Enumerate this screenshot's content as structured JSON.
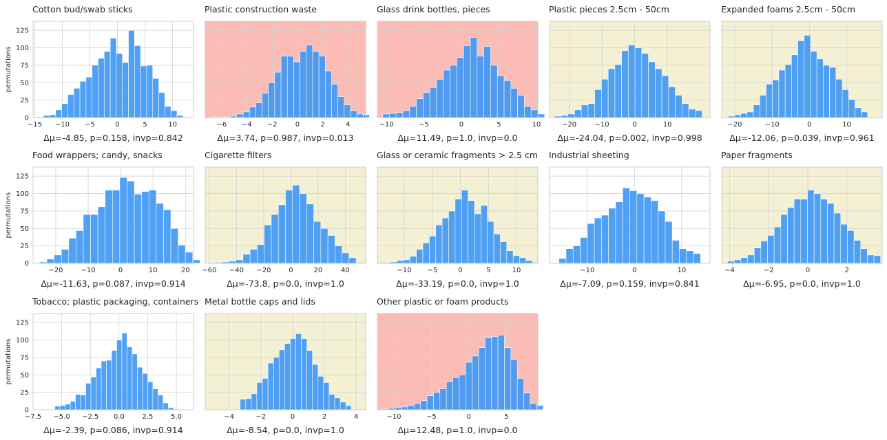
{
  "figure": {
    "ylabel": "permutations",
    "colors": {
      "bar": "#3d97f5",
      "bar_edge": "#ffffff",
      "grid": "#d4d4d4",
      "axis": "#cccccc",
      "tick_text": "#262626",
      "title_text": "#262626",
      "bg_default": "#ffffff",
      "bg_red": "#fbbcb5",
      "bg_yellow": "#f4f0d3"
    }
  },
  "chart_data": [
    {
      "type": "bar",
      "title": "Cotton bud/swab sticks",
      "xlabel": "Δμ=-4.85, p=0.158, invp=0.842",
      "background": "bg_default",
      "xlim": [
        -15.3,
        13.8
      ],
      "ylim": [
        0,
        138
      ],
      "xticks": [
        -15,
        -10,
        -5,
        0,
        5,
        10
      ],
      "xtick_labels": [
        "−15",
        "−10",
        "−5",
        "0",
        "5",
        "10"
      ],
      "yticks": [
        0,
        25,
        50,
        75,
        100,
        125
      ],
      "bin_start": -14.5,
      "bin_width": 1.1,
      "counts": [
        1,
        3,
        4,
        11,
        20,
        33,
        42,
        52,
        58,
        75,
        85,
        95,
        114,
        92,
        79,
        125,
        103,
        74,
        75,
        56,
        36,
        16,
        10,
        3
      ]
    },
    {
      "type": "bar",
      "title": "Plastic construction waste",
      "xlabel": "Δμ=3.74, p=0.987, invp=0.013",
      "background": "bg_red",
      "xlim": [
        -7.3,
        5.4
      ],
      "ylim": [
        0,
        138
      ],
      "xticks": [
        -6,
        -4,
        -2,
        0,
        2,
        4
      ],
      "xtick_labels": [
        "−6",
        "−4",
        "−2",
        "0",
        "2",
        "4"
      ],
      "yticks": [
        0,
        25,
        50,
        75,
        100,
        125
      ],
      "bin_start": -6.8,
      "bin_width": 0.5,
      "counts": [
        1,
        1,
        1,
        2,
        5,
        8,
        15,
        21,
        35,
        50,
        65,
        88,
        88,
        80,
        95,
        104,
        95,
        88,
        67,
        48,
        30,
        18,
        10,
        5,
        4
      ]
    },
    {
      "type": "bar",
      "title": "Glass drink bottles, pieces",
      "xlabel": "Δμ=11.49, p=1.0, invp=0.0",
      "background": "bg_red",
      "xlim": [
        -11.2,
        10.2
      ],
      "ylim": [
        0,
        138
      ],
      "xticks": [
        -10,
        -5,
        0,
        5,
        10
      ],
      "xtick_labels": [
        "−10",
        "−5",
        "0",
        "5",
        "10"
      ],
      "yticks": [
        0,
        25,
        50,
        75,
        100,
        125
      ],
      "bin_start": -10.5,
      "bin_width": 0.9,
      "counts": [
        5,
        6,
        7,
        10,
        16,
        27,
        36,
        43,
        55,
        68,
        75,
        86,
        103,
        115,
        88,
        102,
        75,
        60,
        53,
        42,
        32,
        16,
        11,
        5
      ]
    },
    {
      "type": "bar",
      "title": "Plastic pieces 2.5cm - 50cm",
      "xlabel": "Δμ=-24.04, p=0.002, invp=0.998",
      "background": "bg_yellow",
      "xlim": [
        -26,
        23
      ],
      "ylim": [
        0,
        138
      ],
      "xticks": [
        -20,
        -10,
        0,
        10
      ],
      "xtick_labels": [
        "−20",
        "−10",
        "0",
        "10"
      ],
      "yticks": [
        0,
        25,
        50,
        75,
        100,
        125
      ],
      "bin_start": -24.5,
      "bin_width": 2.05,
      "counts": [
        2,
        3,
        5,
        11,
        18,
        20,
        40,
        55,
        70,
        76,
        96,
        104,
        100,
        92,
        80,
        70,
        60,
        44,
        32,
        20,
        12,
        10
      ]
    },
    {
      "type": "bar",
      "title": "Expanded foams 2.5cm - 50cm",
      "xlabel": "Δμ=-12.06, p=0.039, invp=0.961",
      "background": "bg_yellow",
      "xlim": [
        -23.5,
        19.5
      ],
      "ylim": [
        0,
        138
      ],
      "xticks": [
        -20,
        -10,
        0,
        10
      ],
      "xtick_labels": [
        "−20",
        "−10",
        "0",
        "10"
      ],
      "yticks": [
        0,
        25,
        50,
        75,
        100,
        125
      ],
      "bin_start": -21.8,
      "bin_width": 1.7,
      "counts": [
        2,
        4,
        6,
        8,
        18,
        32,
        48,
        54,
        68,
        76,
        90,
        110,
        118,
        95,
        84,
        75,
        72,
        55,
        40,
        26,
        14,
        8
      ]
    },
    {
      "type": "bar",
      "title": "Food wrappers; candy, snacks",
      "xlabel": "Δμ=-11.63, p=0.087, invp=0.914",
      "background": "bg_default",
      "xlim": [
        -27,
        22.5
      ],
      "ylim": [
        0,
        138
      ],
      "xticks": [
        -20,
        -10,
        0,
        10,
        20
      ],
      "xtick_labels": [
        "−20",
        "−10",
        "0",
        "10",
        "20"
      ],
      "yticks": [
        0,
        25,
        50,
        75,
        100,
        125
      ],
      "bin_start": -25,
      "bin_width": 2.25,
      "counts": [
        2,
        6,
        12,
        20,
        36,
        47,
        70,
        70,
        81,
        105,
        105,
        123,
        118,
        99,
        103,
        105,
        86,
        77,
        50,
        26,
        16,
        5
      ]
    },
    {
      "type": "bar",
      "title": "Cigarette filters",
      "xlabel": "Δμ=-73.8, p=0.0, invp=1.0",
      "background": "bg_yellow",
      "xlim": [
        -63,
        55
      ],
      "ylim": [
        0,
        138
      ],
      "xticks": [
        -60,
        -40,
        -20,
        0,
        20,
        40
      ],
      "xtick_labels": [
        "−60",
        "−40",
        "−20",
        "0",
        "20",
        "40"
      ],
      "yticks": [
        0,
        25,
        50,
        75,
        100,
        125
      ],
      "bin_start": -56,
      "bin_width": 5.2,
      "counts": [
        1,
        2,
        3,
        5,
        13,
        20,
        27,
        55,
        70,
        84,
        105,
        112,
        100,
        85,
        60,
        50,
        40,
        25,
        15,
        8
      ]
    },
    {
      "type": "bar",
      "title": "Glass or ceramic fragments > 2.5 cm",
      "xlabel": "Δμ=-33.19, p=0.0, invp=1.0",
      "background": "bg_yellow",
      "xlim": [
        -14.8,
        13.8
      ],
      "ylim": [
        0,
        138
      ],
      "xticks": [
        -10,
        -5,
        0,
        5,
        10
      ],
      "xtick_labels": [
        "−10",
        "−5",
        "0",
        "5",
        "10"
      ],
      "yticks": [
        0,
        25,
        50,
        75,
        100,
        125
      ],
      "bin_start": -13.6,
      "bin_width": 1.15,
      "counts": [
        1,
        2,
        4,
        5,
        10,
        20,
        29,
        39,
        55,
        65,
        75,
        92,
        105,
        90,
        71,
        83,
        60,
        42,
        31,
        18,
        11,
        8,
        4,
        1
      ]
    },
    {
      "type": "bar",
      "title": "Industrial sheeting",
      "xlabel": "Δμ=-7.09, p=0.159, invp=0.841",
      "background": "bg_default",
      "xlim": [
        -18,
        16
      ],
      "ylim": [
        0,
        138
      ],
      "xticks": [
        -10,
        0,
        10
      ],
      "xtick_labels": [
        "−10",
        "0",
        "10"
      ],
      "yticks": [
        0,
        25,
        50,
        75,
        100,
        125
      ],
      "bin_start": -16,
      "bin_width": 1.5,
      "counts": [
        7,
        21,
        25,
        37,
        57,
        65,
        69,
        79,
        88,
        108,
        104,
        100,
        95,
        90,
        75,
        60,
        33,
        21,
        18,
        14
      ]
    },
    {
      "type": "bar",
      "title": "Paper fragments",
      "xlabel": "Δμ=-6.95, p=0.0, invp=1.0",
      "background": "bg_yellow",
      "xlim": [
        -4.4,
        3.8
      ],
      "ylim": [
        0,
        138
      ],
      "xticks": [
        -4,
        -2,
        0,
        2
      ],
      "xtick_labels": [
        "−4",
        "−2",
        "0",
        "2"
      ],
      "yticks": [
        0,
        25,
        50,
        75,
        100,
        125
      ],
      "bin_start": -4.1,
      "bin_width": 0.34,
      "counts": [
        3,
        5,
        8,
        12,
        22,
        32,
        40,
        52,
        70,
        80,
        92,
        92,
        105,
        100,
        92,
        86,
        72,
        56,
        47,
        33,
        21,
        12,
        11
      ]
    },
    {
      "type": "bar",
      "title": "Tobacco; plastic packaging, containers",
      "xlabel": "Δμ=-2.39, p=0.086, invp=0.914",
      "background": "bg_default",
      "xlim": [
        -7.5,
        6.5
      ],
      "ylim": [
        0,
        138
      ],
      "xticks": [
        -7.5,
        -5,
        -2.5,
        0,
        2.5,
        5
      ],
      "xtick_labels": [
        "−7.5",
        "−5.0",
        "−2.5",
        "0.0",
        "2.5",
        "5.0"
      ],
      "yticks": [
        0,
        25,
        50,
        75,
        100,
        125
      ],
      "bin_start": -5.6,
      "bin_width": 0.45,
      "counts": [
        5,
        6,
        8,
        12,
        22,
        21,
        38,
        47,
        60,
        70,
        71,
        85,
        100,
        110,
        90,
        80,
        61,
        52,
        40,
        30,
        21,
        10,
        3,
        1
      ]
    },
    {
      "type": "bar",
      "title": "Metal bottle caps and lids",
      "xlabel": "Δμ=-8.54, p=0.0, invp=1.0",
      "background": "bg_yellow",
      "xlim": [
        -5.5,
        4.6
      ],
      "ylim": [
        0,
        138
      ],
      "xticks": [
        -4,
        -2,
        0,
        2,
        4
      ],
      "xtick_labels": [
        "−4",
        "−2",
        "0",
        "2",
        "4"
      ],
      "yticks": [
        0,
        25,
        50,
        75,
        100,
        125
      ],
      "bin_start": -3.3,
      "bin_width": 0.35,
      "counts": [
        15,
        16,
        23,
        39,
        45,
        67,
        75,
        86,
        95,
        102,
        109,
        102,
        85,
        65,
        48,
        39,
        22,
        17,
        11,
        6
      ]
    },
    {
      "type": "bar",
      "title": "Other plastic or foam products",
      "xlabel": "Δμ=12.48, p=1.0, invp=0.0",
      "background": "bg_red",
      "xlim": [
        -12.2,
        9.2
      ],
      "ylim": [
        0,
        138
      ],
      "xticks": [
        -10,
        -5,
        0,
        5
      ],
      "xtick_labels": [
        "−10",
        "−5",
        "0",
        "5"
      ],
      "yticks": [
        0,
        25,
        50,
        75,
        100,
        125
      ],
      "bin_start": -11.6,
      "bin_width": 0.86,
      "counts": [
        1,
        2,
        3,
        4,
        6,
        9,
        13,
        20,
        25,
        30,
        40,
        46,
        50,
        68,
        77,
        89,
        103,
        105,
        107,
        89,
        72,
        45,
        24,
        9,
        6
      ]
    }
  ]
}
